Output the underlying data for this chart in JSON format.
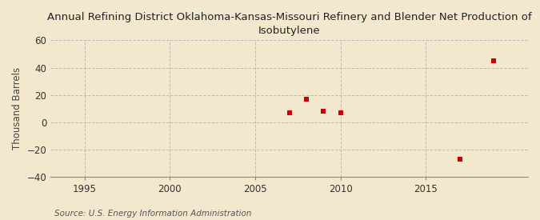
{
  "title": "Annual Refining District Oklahoma-Kansas-Missouri Refinery and Blender Net Production of\nIsobutylene",
  "ylabel": "Thousand Barrels",
  "source": "Source: U.S. Energy Information Administration",
  "xlim": [
    1993,
    2021
  ],
  "ylim": [
    -40,
    60
  ],
  "xticks": [
    1995,
    2000,
    2005,
    2010,
    2015
  ],
  "yticks": [
    -40,
    -20,
    0,
    20,
    40,
    60
  ],
  "background_color": "#f3e8ce",
  "plot_bg_color": "#f3e8ce",
  "grid_color": "#bbbbbb",
  "marker_color": "#cc0000",
  "data_x": [
    2007,
    2008,
    2009,
    2010,
    2017,
    2019
  ],
  "data_y": [
    7,
    17,
    8,
    7,
    -27,
    45
  ],
  "title_fontsize": 9.5,
  "label_fontsize": 8.5,
  "tick_fontsize": 8.5,
  "source_fontsize": 7.5
}
